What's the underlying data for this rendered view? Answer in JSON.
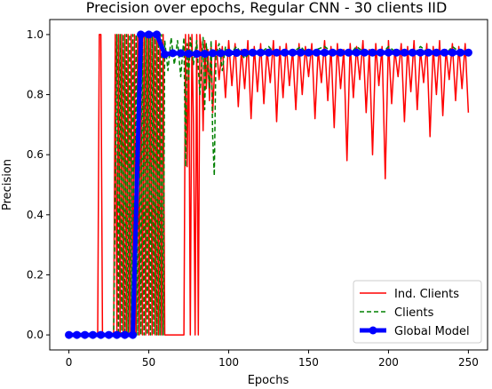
{
  "chart_data": {
    "type": "line",
    "title": "Precision over epochs, Regular CNN - 30 clients IID",
    "xlabel": "Epochs",
    "ylabel": "Precision",
    "xlim": [
      -12,
      262
    ],
    "ylim": [
      -0.05,
      1.05
    ],
    "xticks": [
      0,
      50,
      100,
      150,
      200,
      250
    ],
    "yticks": [
      0.0,
      0.2,
      0.4,
      0.6,
      0.8,
      1.0
    ],
    "xtick_labels": [
      "0",
      "50",
      "100",
      "150",
      "200",
      "250"
    ],
    "ytick_labels": [
      "0.0",
      "0.2",
      "0.4",
      "0.6",
      "0.8",
      "1.0"
    ],
    "grid": false,
    "legend_position": "lower-right",
    "legend": [
      {
        "label": "Ind. Clients",
        "color": "#ff0000",
        "style": "solid"
      },
      {
        "label": "Clients",
        "color": "#008000",
        "style": "dashed"
      },
      {
        "label": "Global Model",
        "color": "#0000ff",
        "style": "thick-marker"
      }
    ],
    "series": [
      {
        "name": "Ind. Clients",
        "color": "#ff0000",
        "style": "solid",
        "x": [
          0,
          18,
          19,
          20,
          21,
          28,
          29,
          30,
          31,
          32,
          33,
          34,
          35,
          36,
          37,
          38,
          39,
          40,
          41,
          42,
          43,
          44,
          45,
          46,
          47,
          48,
          49,
          50,
          51,
          52,
          53,
          54,
          55,
          56,
          57,
          58,
          59,
          60,
          61,
          62,
          63,
          64,
          65,
          66,
          67,
          68,
          69,
          70,
          71,
          72,
          73,
          74,
          75,
          76,
          77,
          78,
          79,
          80,
          81,
          82,
          83,
          84,
          85,
          86,
          87,
          88,
          89,
          90,
          92,
          94,
          96,
          98,
          100,
          102,
          104,
          106,
          108,
          110,
          112,
          114,
          116,
          118,
          120,
          122,
          124,
          126,
          128,
          130,
          132,
          134,
          136,
          138,
          140,
          142,
          144,
          146,
          148,
          150,
          152,
          154,
          156,
          158,
          160,
          162,
          164,
          166,
          168,
          170,
          172,
          174,
          176,
          178,
          180,
          182,
          184,
          186,
          188,
          190,
          192,
          194,
          196,
          198,
          200,
          202,
          204,
          206,
          208,
          210,
          212,
          214,
          216,
          218,
          220,
          222,
          224,
          226,
          228,
          230,
          232,
          234,
          236,
          238,
          240,
          242,
          244,
          246,
          248,
          250
        ],
        "y": [
          0.0,
          0.0,
          1.0,
          1.0,
          0.0,
          0.0,
          1.0,
          0.0,
          1.0,
          0.0,
          1.0,
          0.0,
          1.0,
          0.0,
          1.0,
          0.0,
          1.0,
          0.0,
          1.0,
          0.0,
          1.0,
          0.0,
          1.0,
          0.0,
          1.0,
          0.0,
          1.0,
          0.0,
          1.0,
          0.0,
          1.0,
          0.0,
          1.0,
          0.0,
          1.0,
          0.0,
          1.0,
          0.0,
          0.0,
          0.0,
          0.0,
          0.0,
          0.0,
          0.0,
          0.0,
          0.0,
          0.0,
          0.0,
          0.0,
          0.0,
          1.0,
          0.56,
          1.0,
          0.0,
          1.0,
          0.7,
          0.0,
          1.0,
          0.0,
          1.0,
          0.95,
          0.68,
          0.98,
          0.82,
          0.95,
          0.78,
          0.97,
          0.74,
          0.98,
          0.85,
          0.96,
          0.79,
          0.98,
          0.83,
          0.97,
          0.76,
          0.95,
          0.82,
          0.98,
          0.72,
          0.96,
          0.81,
          0.97,
          0.77,
          0.95,
          0.84,
          0.98,
          0.71,
          0.96,
          0.79,
          0.97,
          0.83,
          0.95,
          0.75,
          0.97,
          0.8,
          0.96,
          0.86,
          0.97,
          0.72,
          0.95,
          0.84,
          0.98,
          0.78,
          0.96,
          0.69,
          0.97,
          0.82,
          0.95,
          0.58,
          0.97,
          0.79,
          0.96,
          0.85,
          0.98,
          0.74,
          0.95,
          0.6,
          0.97,
          0.83,
          0.96,
          0.52,
          0.98,
          0.77,
          0.95,
          0.86,
          0.97,
          0.71,
          0.96,
          0.81,
          0.98,
          0.75,
          0.95,
          0.84,
          0.97,
          0.66,
          0.96,
          0.8,
          0.98,
          0.73,
          0.95,
          0.85,
          0.97,
          0.78,
          0.96,
          0.82,
          0.97,
          0.74
        ]
      },
      {
        "name": "Clients",
        "color": "#008000",
        "style": "dashed",
        "x": [
          0,
          28,
          30,
          31,
          32,
          33,
          34,
          35,
          36,
          37,
          38,
          39,
          40,
          41,
          42,
          43,
          44,
          45,
          46,
          47,
          48,
          49,
          50,
          51,
          52,
          53,
          54,
          55,
          56,
          57,
          58,
          59,
          60,
          62,
          64,
          66,
          68,
          70,
          72,
          73,
          74,
          75,
          76,
          78,
          80,
          82,
          84,
          85,
          86,
          88,
          89,
          90,
          91,
          92,
          94,
          96,
          98,
          100,
          105,
          110,
          115,
          120,
          125,
          130,
          135,
          140,
          145,
          150,
          155,
          160,
          165,
          170,
          175,
          180,
          185,
          190,
          195,
          200,
          205,
          210,
          215,
          220,
          225,
          230,
          235,
          240,
          245,
          250
        ],
        "y": [
          0.0,
          0.0,
          1.0,
          0.0,
          1.0,
          0.0,
          1.0,
          0.0,
          1.0,
          0.0,
          1.0,
          0.0,
          1.0,
          0.0,
          1.0,
          0.0,
          1.0,
          0.0,
          1.0,
          0.0,
          1.0,
          0.0,
          1.0,
          0.0,
          1.0,
          0.0,
          1.0,
          0.0,
          1.0,
          0.0,
          1.0,
          0.0,
          0.98,
          0.88,
          0.99,
          0.9,
          0.98,
          0.86,
          0.99,
          0.56,
          0.97,
          0.85,
          0.99,
          0.9,
          0.98,
          0.8,
          0.99,
          0.75,
          0.97,
          0.82,
          0.98,
          0.66,
          0.53,
          0.93,
          0.97,
          0.88,
          0.96,
          0.93,
          0.96,
          0.92,
          0.95,
          0.94,
          0.96,
          0.93,
          0.95,
          0.94,
          0.96,
          0.93,
          0.95,
          0.96,
          0.94,
          0.95,
          0.93,
          0.96,
          0.94,
          0.95,
          0.93,
          0.96,
          0.94,
          0.95,
          0.93,
          0.96,
          0.94,
          0.95,
          0.93,
          0.96,
          0.94,
          0.95
        ]
      },
      {
        "name": "Global Model",
        "color": "#0000ff",
        "style": "thick-marker",
        "x": [
          0,
          5,
          10,
          15,
          20,
          25,
          30,
          35,
          40,
          45,
          50,
          55,
          60,
          65,
          70,
          75,
          80,
          85,
          90,
          95,
          100,
          105,
          110,
          115,
          120,
          125,
          130,
          135,
          140,
          145,
          150,
          155,
          160,
          165,
          170,
          175,
          180,
          185,
          190,
          195,
          200,
          205,
          210,
          215,
          220,
          225,
          230,
          235,
          240,
          245,
          250
        ],
        "y": [
          0.0,
          0.0,
          0.0,
          0.0,
          0.0,
          0.0,
          0.0,
          0.0,
          0.0,
          1.0,
          1.0,
          1.0,
          0.934,
          0.938,
          0.938,
          0.936,
          0.936,
          0.936,
          0.938,
          0.938,
          0.939,
          0.939,
          0.94,
          0.94,
          0.94,
          0.94,
          0.94,
          0.94,
          0.94,
          0.94,
          0.94,
          0.94,
          0.94,
          0.94,
          0.94,
          0.94,
          0.94,
          0.94,
          0.94,
          0.94,
          0.94,
          0.94,
          0.94,
          0.94,
          0.94,
          0.94,
          0.94,
          0.94,
          0.94,
          0.94,
          0.94
        ]
      }
    ]
  }
}
